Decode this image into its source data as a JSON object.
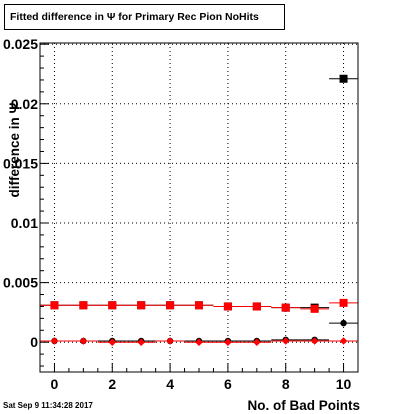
{
  "title": "Fitted difference in  Ψ  for Primary Rec Pion NoHits",
  "timestamp": "Sat Sep  9 11:34:28 2017",
  "chart_data": {
    "type": "scatter",
    "title": "Fitted difference in  Ψ  for Primary Rec Pion NoHits",
    "xlabel": "No. of Bad Points",
    "ylabel": "difference in Ψ",
    "xlim": [
      -0.5,
      10.5
    ],
    "ylim": [
      -0.0025,
      0.0251
    ],
    "x_ticks": [
      "0",
      "2",
      "4",
      "6",
      "8",
      "10"
    ],
    "y_ticks": [
      "0",
      "0.005",
      "0.01",
      "0.015",
      "0.02",
      "0.025"
    ],
    "grid": true,
    "series": [
      {
        "marker": "square",
        "color": "#000000",
        "x": [
          0,
          1,
          2,
          3,
          4,
          5,
          6,
          7,
          8,
          9,
          10
        ],
        "y": [
          0.0031,
          0.0031,
          0.0031,
          0.0031,
          0.0031,
          0.0031,
          0.003,
          0.003,
          0.0029,
          0.0029,
          0.0221
        ]
      },
      {
        "marker": "square",
        "color": "#ff0000",
        "x": [
          0,
          1,
          2,
          3,
          4,
          5,
          6,
          7,
          8,
          9,
          10
        ],
        "y": [
          0.0031,
          0.0031,
          0.0031,
          0.0031,
          0.0031,
          0.0031,
          0.003,
          0.003,
          0.0029,
          0.0028,
          0.0033
        ]
      },
      {
        "marker": "circle",
        "color": "#000000",
        "x": [
          0,
          1,
          2,
          3,
          4,
          5,
          6,
          7,
          8,
          9,
          10
        ],
        "y": [
          0.0001,
          0.0001,
          0.0001,
          0.0001,
          0.0001,
          0.0001,
          0.0001,
          0.0001,
          0.0002,
          0.0002,
          0.0016
        ]
      },
      {
        "marker": "diamond",
        "color": "#ff0000",
        "x": [
          0,
          1,
          2,
          3,
          4,
          5,
          6,
          7,
          8,
          9,
          10
        ],
        "y": [
          0.0001,
          0.0001,
          0.0,
          0.0,
          0.0001,
          0.0,
          0.0,
          0.0,
          0.0001,
          0.0001,
          0.0001
        ]
      }
    ]
  }
}
